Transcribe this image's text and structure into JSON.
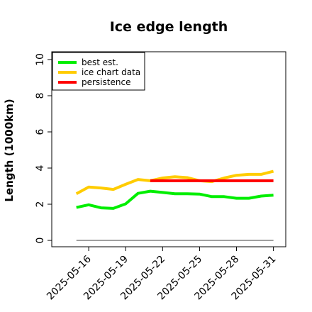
{
  "chart_data": {
    "type": "line",
    "title": "Ice edge length",
    "xlabel": "",
    "ylabel": "Length (1000km)",
    "ylim": [
      0,
      10
    ],
    "yticks": [
      0,
      2,
      4,
      6,
      8,
      10
    ],
    "xlim": [
      "2025-05-13",
      "2025-06-01"
    ],
    "xticks": [
      "2025-05-16",
      "2025-05-19",
      "2025-05-22",
      "2025-05-25",
      "2025-05-28",
      "2025-05-31"
    ],
    "grid": false,
    "legend": "top-left",
    "series": [
      {
        "name": "best est.",
        "color": "#00ee00",
        "x": [
          "2025-05-15",
          "2025-05-16",
          "2025-05-17",
          "2025-05-18",
          "2025-05-19",
          "2025-05-20",
          "2025-05-21",
          "2025-05-22",
          "2025-05-23",
          "2025-05-24",
          "2025-05-25",
          "2025-05-26",
          "2025-05-27",
          "2025-05-28",
          "2025-05-29",
          "2025-05-30",
          "2025-05-31"
        ],
        "values": [
          1.82,
          1.97,
          1.8,
          1.77,
          2.02,
          2.6,
          2.72,
          2.65,
          2.58,
          2.58,
          2.56,
          2.42,
          2.42,
          2.33,
          2.33,
          2.45,
          2.5
        ]
      },
      {
        "name": "ice chart data",
        "color": "#ffcc00",
        "x": [
          "2025-05-15",
          "2025-05-16",
          "2025-05-17",
          "2025-05-18",
          "2025-05-19",
          "2025-05-20",
          "2025-05-21",
          "2025-05-22",
          "2025-05-23",
          "2025-05-24",
          "2025-05-25",
          "2025-05-26",
          "2025-05-27",
          "2025-05-28",
          "2025-05-29",
          "2025-05-30",
          "2025-05-31"
        ],
        "values": [
          2.58,
          2.95,
          2.9,
          2.82,
          3.1,
          3.37,
          3.3,
          3.45,
          3.52,
          3.47,
          3.3,
          3.25,
          3.45,
          3.6,
          3.65,
          3.65,
          3.82
        ]
      },
      {
        "name": "persistence",
        "color": "#ff0000",
        "x": [
          "2025-05-21",
          "2025-05-31"
        ],
        "values": [
          3.3,
          3.3
        ]
      }
    ],
    "baseline": {
      "value": 0,
      "x": [
        "2025-05-15",
        "2025-05-31"
      ],
      "color": "#808080"
    }
  }
}
